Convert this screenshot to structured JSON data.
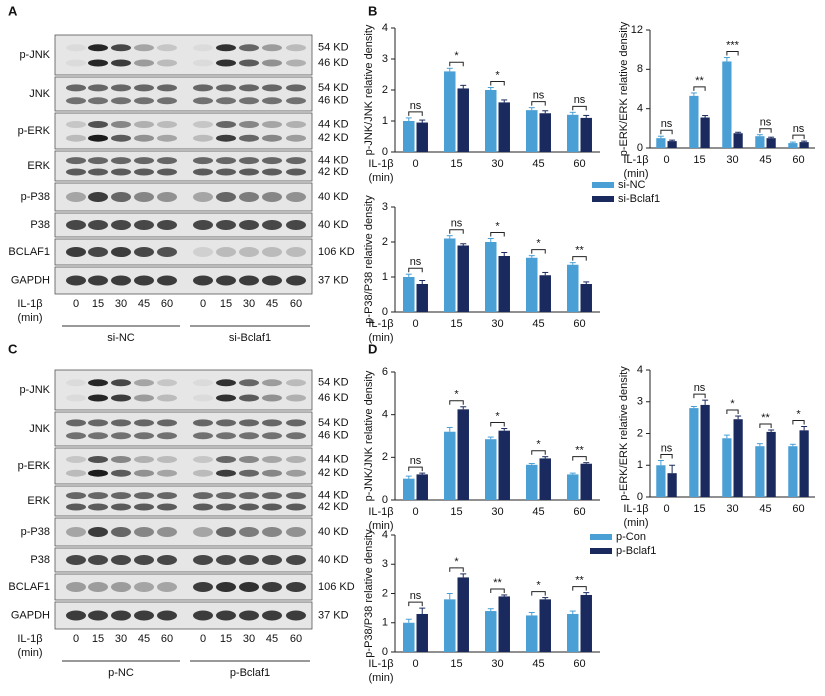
{
  "panel_labels": [
    "A",
    "B",
    "C",
    "D"
  ],
  "blots": [
    {
      "rows": [
        {
          "label": "p-JNK",
          "sizes": [
            "54 KD",
            "46 KD"
          ]
        },
        {
          "label": "JNK",
          "sizes": [
            "54 KD",
            "46 KD"
          ]
        },
        {
          "label": "p-ERK",
          "sizes": [
            "44 KD",
            "42 KD"
          ]
        },
        {
          "label": "ERK",
          "sizes": [
            "44 KD",
            "42 KD"
          ]
        },
        {
          "label": "p-P38",
          "sizes": [
            "40 KD"
          ]
        },
        {
          "label": "P38",
          "sizes": [
            "40 KD"
          ]
        },
        {
          "label": "BCLAF1",
          "sizes": [
            "106 KD"
          ]
        },
        {
          "label": "GAPDH",
          "sizes": [
            "37 KD"
          ]
        }
      ],
      "condition_label": [
        "IL-1β",
        "(min)"
      ],
      "lanes": [
        "0",
        "15",
        "30",
        "45",
        "60"
      ],
      "groups": [
        "si-NC",
        "si-Bclaf1"
      ]
    },
    {
      "rows": [
        {
          "label": "p-JNK",
          "sizes": [
            "54 KD",
            "46 KD"
          ]
        },
        {
          "label": "JNK",
          "sizes": [
            "54 KD",
            "46 KD"
          ]
        },
        {
          "label": "p-ERK",
          "sizes": [
            "44 KD",
            "42 KD"
          ]
        },
        {
          "label": "ERK",
          "sizes": [
            "44 KD",
            "42 KD"
          ]
        },
        {
          "label": "p-P38",
          "sizes": [
            "40 KD"
          ]
        },
        {
          "label": "P38",
          "sizes": [
            "40 KD"
          ]
        },
        {
          "label": "BCLAF1",
          "sizes": [
            "106 KD"
          ]
        },
        {
          "label": "GAPDH",
          "sizes": [
            "37 KD"
          ]
        }
      ],
      "condition_label": [
        "IL-1β",
        "(min)"
      ],
      "lanes": [
        "0",
        "15",
        "30",
        "45",
        "60"
      ],
      "groups": [
        "p-NC",
        "p-Bclaf1"
      ]
    }
  ],
  "chart_data": [
    {
      "type": "bar",
      "ylabel": "p-JNK/JNK relative density",
      "xlabel": [
        "IL-1β",
        "(min)"
      ],
      "categories": [
        "0",
        "15",
        "30",
        "45",
        "60"
      ],
      "ylim": [
        0,
        4
      ],
      "yticks": [
        0,
        1,
        2,
        3,
        4
      ],
      "series": [
        {
          "color": "#4a9fd5",
          "values": [
            1.0,
            2.6,
            2.0,
            1.35,
            1.2
          ],
          "errors": [
            0.1,
            0.1,
            0.08,
            0.08,
            0.08
          ]
        },
        {
          "color": "#1b2a5e",
          "values": [
            0.95,
            2.05,
            1.6,
            1.25,
            1.1
          ],
          "errors": [
            0.08,
            0.1,
            0.08,
            0.08,
            0.08
          ]
        }
      ],
      "annotations": [
        "ns",
        "*",
        "*",
        "ns",
        "ns"
      ]
    },
    {
      "type": "bar",
      "ylabel": "p-ERK/ERK relative density",
      "xlabel": [
        "IL-1β",
        "(min)"
      ],
      "categories": [
        "0",
        "15",
        "30",
        "45",
        "60"
      ],
      "ylim": [
        0,
        12
      ],
      "yticks": [
        0,
        4,
        8,
        12
      ],
      "series": [
        {
          "color": "#4a9fd5",
          "values": [
            1.0,
            5.3,
            8.8,
            1.2,
            0.5
          ],
          "errors": [
            0.2,
            0.3,
            0.4,
            0.15,
            0.1
          ]
        },
        {
          "color": "#1b2a5e",
          "values": [
            0.7,
            3.1,
            1.5,
            1.0,
            0.6
          ],
          "errors": [
            0.1,
            0.2,
            0.1,
            0.1,
            0.1
          ]
        }
      ],
      "annotations": [
        "ns",
        "**",
        "***",
        "ns",
        "ns"
      ]
    },
    {
      "type": "bar",
      "ylabel": "p-P38/P38 relative density",
      "xlabel": [
        "IL-1β",
        "(min)"
      ],
      "categories": [
        "0",
        "15",
        "30",
        "45",
        "60"
      ],
      "ylim": [
        0,
        3
      ],
      "yticks": [
        0,
        1,
        2,
        3
      ],
      "series": [
        {
          "name": "si-NC",
          "color": "#4a9fd5",
          "values": [
            1.0,
            2.1,
            2.0,
            1.55,
            1.35
          ],
          "errors": [
            0.08,
            0.08,
            0.1,
            0.06,
            0.06
          ]
        },
        {
          "name": "si-Bclaf1",
          "color": "#1b2a5e",
          "values": [
            0.8,
            1.9,
            1.6,
            1.05,
            0.8
          ],
          "errors": [
            0.1,
            0.05,
            0.1,
            0.08,
            0.06
          ]
        }
      ],
      "annotations": [
        "ns",
        "ns",
        "*",
        "*",
        "**"
      ],
      "legend": "right"
    },
    {
      "type": "bar",
      "ylabel": "p-JNK/JNK relative density",
      "xlabel": [
        "IL-1β",
        "(min)"
      ],
      "categories": [
        "0",
        "15",
        "30",
        "45",
        "60"
      ],
      "ylim": [
        0,
        6
      ],
      "yticks": [
        0,
        2,
        4,
        6
      ],
      "series": [
        {
          "color": "#4a9fd5",
          "values": [
            1.0,
            3.2,
            2.85,
            1.65,
            1.2
          ],
          "errors": [
            0.12,
            0.2,
            0.1,
            0.06,
            0.06
          ]
        },
        {
          "color": "#1b2a5e",
          "values": [
            1.2,
            4.25,
            3.25,
            1.95,
            1.7
          ],
          "errors": [
            0.06,
            0.12,
            0.1,
            0.08,
            0.05
          ]
        }
      ],
      "annotations": [
        "ns",
        "*",
        "*",
        "*",
        "**"
      ]
    },
    {
      "type": "bar",
      "ylabel": "p-ERK/ERK relative density",
      "xlabel": [
        "IL-1β",
        "(min)"
      ],
      "categories": [
        "0",
        "15",
        "30",
        "45",
        "60"
      ],
      "ylim": [
        0,
        4
      ],
      "yticks": [
        0,
        1,
        2,
        3,
        4
      ],
      "series": [
        {
          "color": "#4a9fd5",
          "values": [
            1.0,
            2.8,
            1.85,
            1.6,
            1.6
          ],
          "errors": [
            0.15,
            0.05,
            0.1,
            0.08,
            0.06
          ]
        },
        {
          "color": "#1b2a5e",
          "values": [
            0.75,
            2.9,
            2.45,
            2.05,
            2.1
          ],
          "errors": [
            0.25,
            0.15,
            0.1,
            0.06,
            0.12
          ]
        }
      ],
      "annotations": [
        "ns",
        "ns",
        "*",
        "**",
        "*"
      ]
    },
    {
      "type": "bar",
      "ylabel": "p-P38/P38 relative density",
      "xlabel": [
        "IL-1β",
        "(min)"
      ],
      "categories": [
        "0",
        "15",
        "30",
        "45",
        "60"
      ],
      "ylim": [
        0,
        4
      ],
      "yticks": [
        0,
        1,
        2,
        3,
        4
      ],
      "series": [
        {
          "name": "p-Con",
          "color": "#4a9fd5",
          "values": [
            1.0,
            1.8,
            1.4,
            1.25,
            1.3
          ],
          "errors": [
            0.12,
            0.2,
            0.08,
            0.1,
            0.1
          ]
        },
        {
          "name": "p-Bclaf1",
          "color": "#1b2a5e",
          "values": [
            1.3,
            2.55,
            1.9,
            1.8,
            1.95
          ],
          "errors": [
            0.2,
            0.12,
            0.05,
            0.06,
            0.08
          ]
        }
      ],
      "annotations": [
        "ns",
        "*",
        "**",
        "*",
        "**"
      ],
      "legend": "right"
    }
  ]
}
